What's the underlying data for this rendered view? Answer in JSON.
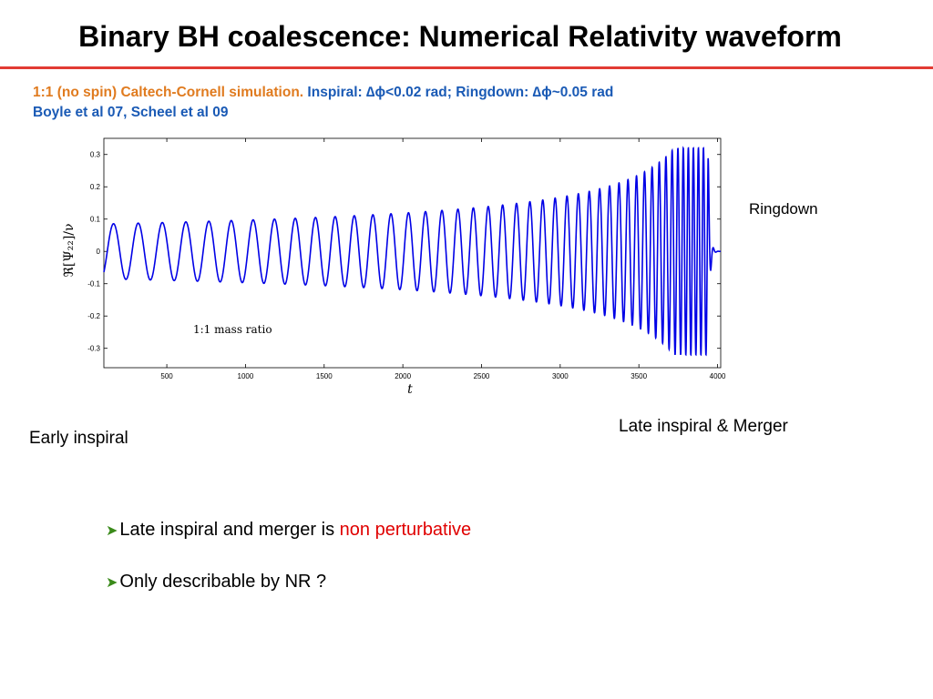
{
  "slide": {
    "title": "Binary BH coalescence: Numerical Relativity waveform",
    "credit_line1": {
      "orange": "1:1 (no spin) Caltech-Cornell simulation.",
      "blue": " Inspiral: ∆ϕ<0.02 rad; Ringdown: ∆ϕ~0.05 rad"
    },
    "credit_line2": "Boyle et al 07, Scheel et al 09",
    "annotations": {
      "ringdown": "Ringdown",
      "late": "Late inspiral & Merger",
      "early": "Early inspiral"
    },
    "bullets": [
      {
        "prefix": "Late inspiral and merger is ",
        "highlight": "non perturbative"
      },
      {
        "prefix": "Only describable by NR ?",
        "highlight": ""
      }
    ],
    "colors": {
      "title_rule": "#e23b33",
      "orange": "#e07b1f",
      "blue": "#1a5ab5",
      "highlight": "#e00000",
      "bullet_arrow": "#3a8a1a",
      "waveform": "#0000e6"
    },
    "icons": {
      "bullet": "arrow-bullet-icon"
    }
  },
  "chart_data": {
    "type": "line",
    "title": "",
    "xlabel": "t",
    "ylabel": "ℜ[Ψ₂₂]/ν",
    "xlim": [
      100,
      4020
    ],
    "ylim": [
      -0.36,
      0.35
    ],
    "xticks": [
      500,
      1000,
      1500,
      2000,
      2500,
      3000,
      3500,
      4000
    ],
    "yticks": [
      -0.3,
      -0.2,
      -0.1,
      0,
      0.1,
      0.2,
      0.3
    ],
    "grid": false,
    "annotation": "1:1 mass ratio",
    "series": [
      {
        "t_start": 100,
        "t_merger": 3940,
        "t_end": 4020,
        "initial_amplitude": 0.085,
        "peak_amplitude": 0.32,
        "initial_period": 160,
        "final_period": 32,
        "ringdown_decay": 10,
        "initial_value": -0.065
      }
    ]
  }
}
